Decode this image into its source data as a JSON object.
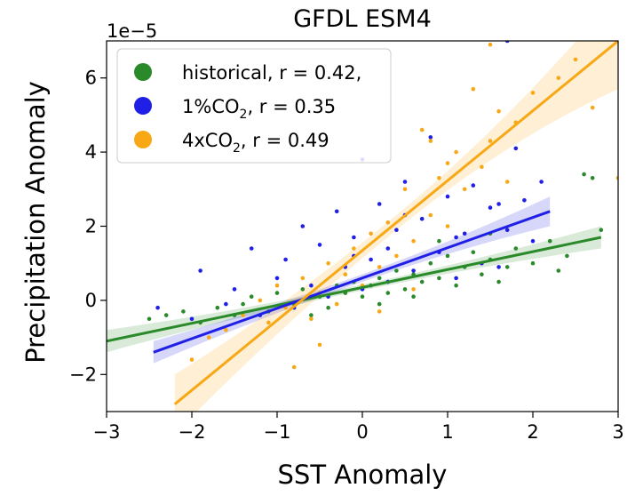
{
  "chart_data": {
    "type": "scatter",
    "title": "GFDL ESM4",
    "xlabel": "SST Anomaly",
    "ylabel": "Precipitation Anomaly",
    "y_offset_label": "1e−5",
    "xlim": [
      -3,
      3
    ],
    "ylim": [
      -3,
      7
    ],
    "x_ticks": [
      -3,
      -2,
      -1,
      0,
      1,
      2,
      3
    ],
    "x_tick_labels": [
      "−3",
      "−2",
      "−1",
      "0",
      "1",
      "2",
      "3"
    ],
    "y_ticks": [
      -2,
      0,
      2,
      4,
      6
    ],
    "y_tick_labels": [
      "−2",
      "0",
      "2",
      "4",
      "6"
    ],
    "grid": false,
    "legend_position": "top-left",
    "series": [
      {
        "name": "historical, r = 0.42,",
        "label_main": "historical, r = 0.42,",
        "label_sub": "",
        "label_tail": "",
        "color": "#2a8a2a",
        "regression": {
          "x_start": -3,
          "x_end": 2.8,
          "y_start": -1.1,
          "y_end": 1.7
        },
        "band_halfwidth": {
          "start": 0.3,
          "mid": 0.08,
          "end": 0.3
        },
        "points": [
          [
            -2.5,
            -0.5
          ],
          [
            -2.3,
            -0.4
          ],
          [
            -2.1,
            -0.3
          ],
          [
            -1.9,
            -0.6
          ],
          [
            -1.7,
            -0.2
          ],
          [
            -1.5,
            -0.4
          ],
          [
            -1.3,
            0.1
          ],
          [
            -1.1,
            -0.3
          ],
          [
            -1.0,
            0.2
          ],
          [
            -0.8,
            -0.1
          ],
          [
            -0.7,
            0.3
          ],
          [
            -0.5,
            0.1
          ],
          [
            -0.4,
            -0.2
          ],
          [
            -0.3,
            0.4
          ],
          [
            -0.2,
            0.2
          ],
          [
            -0.1,
            0.5
          ],
          [
            0.0,
            0.1
          ],
          [
            0.1,
            0.4
          ],
          [
            0.2,
            0.6
          ],
          [
            0.3,
            0.2
          ],
          [
            0.4,
            0.8
          ],
          [
            0.5,
            0.3
          ],
          [
            0.6,
            0.7
          ],
          [
            0.7,
            0.5
          ],
          [
            0.8,
            1.0
          ],
          [
            0.9,
            0.6
          ],
          [
            1.0,
            1.2
          ],
          [
            1.1,
            0.4
          ],
          [
            1.2,
            0.9
          ],
          [
            1.3,
            1.3
          ],
          [
            1.4,
            0.7
          ],
          [
            1.5,
            1.1
          ],
          [
            1.6,
            0.5
          ],
          [
            1.8,
            1.4
          ],
          [
            2.0,
            1.0
          ],
          [
            2.2,
            1.6
          ],
          [
            2.4,
            1.2
          ],
          [
            2.6,
            3.4
          ],
          [
            2.7,
            3.3
          ],
          [
            2.8,
            1.9
          ],
          [
            -0.6,
            -0.4
          ],
          [
            0.2,
            -0.1
          ],
          [
            0.6,
            0.1
          ],
          [
            1.7,
            0.9
          ],
          [
            -1.4,
            -0.1
          ],
          [
            0.9,
            1.6
          ],
          [
            1.5,
            1.8
          ],
          [
            2.3,
            0.8
          ]
        ]
      },
      {
        "name": "1%CO2, r = 0.35",
        "label_main": "1%CO",
        "label_sub": "2",
        "label_tail": ", r = 0.35",
        "color": "#1f1fe6",
        "regression": {
          "x_start": -2.45,
          "x_end": 2.2,
          "y_start": -1.4,
          "y_end": 2.4
        },
        "band_halfwidth": {
          "start": 0.3,
          "mid": 0.1,
          "end": 0.4
        },
        "points": [
          [
            -2.4,
            -0.2
          ],
          [
            -2.0,
            -0.5
          ],
          [
            -1.9,
            0.8
          ],
          [
            -1.6,
            -0.1
          ],
          [
            -1.5,
            0.3
          ],
          [
            -1.3,
            1.4
          ],
          [
            -1.2,
            -0.4
          ],
          [
            -1.0,
            0.6
          ],
          [
            -0.9,
            1.1
          ],
          [
            -0.8,
            -0.2
          ],
          [
            -0.7,
            2.0
          ],
          [
            -0.6,
            0.4
          ],
          [
            -0.5,
            1.5
          ],
          [
            -0.4,
            0.1
          ],
          [
            -0.3,
            2.4
          ],
          [
            -0.2,
            0.9
          ],
          [
            -0.1,
            1.7
          ],
          [
            0.0,
            0.3
          ],
          [
            0.0,
            3.8
          ],
          [
            0.1,
            1.1
          ],
          [
            0.2,
            2.6
          ],
          [
            0.3,
            0.5
          ],
          [
            0.4,
            1.9
          ],
          [
            0.5,
            3.2
          ],
          [
            0.6,
            0.8
          ],
          [
            0.7,
            2.2
          ],
          [
            0.8,
            4.4
          ],
          [
            0.9,
            1.3
          ],
          [
            1.0,
            2.8
          ],
          [
            1.1,
            0.6
          ],
          [
            1.2,
            1.8
          ],
          [
            1.3,
            3.1
          ],
          [
            1.4,
            1.0
          ],
          [
            1.5,
            2.5
          ],
          [
            1.6,
            0.9
          ],
          [
            1.7,
            1.9
          ],
          [
            1.8,
            4.1
          ],
          [
            1.9,
            2.7
          ],
          [
            2.0,
            1.6
          ],
          [
            2.1,
            3.2
          ],
          [
            1.7,
            7.0
          ],
          [
            0.5,
            2.3
          ],
          [
            -0.1,
            1.2
          ],
          [
            0.3,
            1.4
          ],
          [
            1.1,
            1.7
          ],
          [
            1.6,
            2.6
          ]
        ]
      },
      {
        "name": "4xCO2, r = 0.49",
        "label_main": "4xCO",
        "label_sub": "2",
        "label_tail": ", r = 0.49",
        "color": "#f7a814",
        "regression": {
          "x_start": -2.2,
          "x_end": 3.0,
          "y_start": -2.8,
          "y_end": 7.0
        },
        "band_halfwidth": {
          "start": 0.8,
          "mid": 0.2,
          "end": 1.3
        },
        "points": [
          [
            -2.0,
            -1.6
          ],
          [
            -1.8,
            -1.0
          ],
          [
            -1.6,
            -0.8
          ],
          [
            -1.4,
            -0.4
          ],
          [
            -1.2,
            0.0
          ],
          [
            -1.1,
            -0.6
          ],
          [
            -1.0,
            0.4
          ],
          [
            -0.9,
            -0.2
          ],
          [
            -0.8,
            -1.8
          ],
          [
            -0.7,
            0.6
          ],
          [
            -0.6,
            -0.5
          ],
          [
            -0.5,
            0.2
          ],
          [
            -0.4,
            1.0
          ],
          [
            -0.3,
            -0.1
          ],
          [
            -0.2,
            0.7
          ],
          [
            -0.1,
            1.4
          ],
          [
            0.0,
            0.4
          ],
          [
            0.1,
            1.8
          ],
          [
            0.2,
            0.9
          ],
          [
            0.3,
            2.1
          ],
          [
            0.4,
            1.2
          ],
          [
            0.5,
            3.0
          ],
          [
            0.6,
            1.6
          ],
          [
            0.7,
            4.6
          ],
          [
            0.8,
            2.3
          ],
          [
            0.9,
            3.3
          ],
          [
            1.0,
            2.0
          ],
          [
            1.1,
            4.0
          ],
          [
            1.2,
            3.0
          ],
          [
            1.3,
            5.7
          ],
          [
            1.4,
            3.6
          ],
          [
            1.5,
            4.3
          ],
          [
            1.6,
            5.1
          ],
          [
            1.7,
            3.2
          ],
          [
            1.8,
            4.8
          ],
          [
            2.0,
            5.6
          ],
          [
            2.3,
            6.0
          ],
          [
            2.5,
            6.5
          ],
          [
            2.7,
            5.2
          ],
          [
            3.0,
            3.3
          ],
          [
            1.5,
            6.9
          ],
          [
            0.8,
            4.3
          ],
          [
            0.2,
            -0.3
          ],
          [
            -0.5,
            -1.2
          ],
          [
            0.6,
            0.3
          ],
          [
            1.0,
            3.7
          ]
        ]
      }
    ]
  }
}
